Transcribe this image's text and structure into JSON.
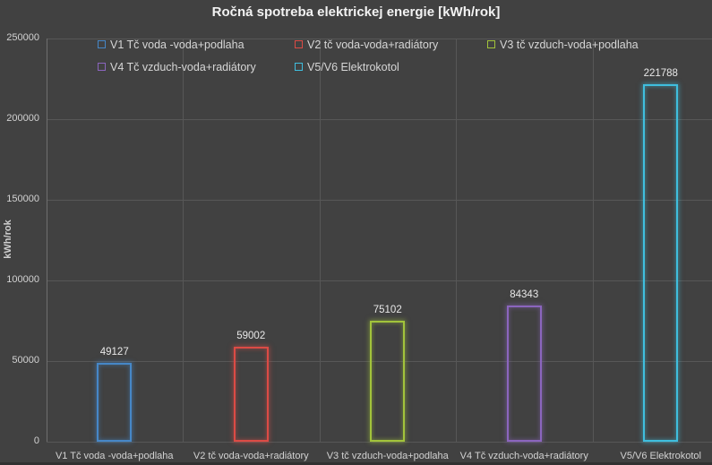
{
  "chart_data": {
    "type": "bar",
    "title": "Ročná spotreba elektrickej energie [kWh/rok]",
    "ylabel": "kWh/rok",
    "ylim": [
      0,
      250000
    ],
    "ytick_step": 50000,
    "ytick_labels": [
      "0",
      "50000",
      "100000",
      "150000",
      "200000",
      "250000"
    ],
    "grid": true,
    "legend_position": "top-inside-two-rows",
    "categories": [
      "V1 Tč voda -voda+podlaha",
      "V2 tč voda-voda+radiátory",
      "V3 tč vzduch-voda+podlaha",
      "V4 Tč vzduch-voda+radiátory",
      "V5/V6 Elektrokotol"
    ],
    "series": [
      {
        "name": "V1 Tč voda -voda+podlaha",
        "value": 49127,
        "color": "#4687C7"
      },
      {
        "name": "V2 tč voda-voda+radiátory",
        "value": 59002,
        "color": "#DC4B45"
      },
      {
        "name": "V3 tč vzduch-voda+podlaha",
        "value": 75102,
        "color": "#A2C33B"
      },
      {
        "name": "V4 Tč vzduch-voda+radiátory",
        "value": 84343,
        "color": "#8B65BE"
      },
      {
        "name": "V5/V6 Elektrokotol",
        "value": 221788,
        "color": "#3FBEDE"
      }
    ]
  },
  "colors": {
    "background": "#414141",
    "gridline": "#575757",
    "axis_line": "#6F6F6F",
    "tick_text": "#D2D2D2",
    "title_text": "#F2F2F2"
  }
}
